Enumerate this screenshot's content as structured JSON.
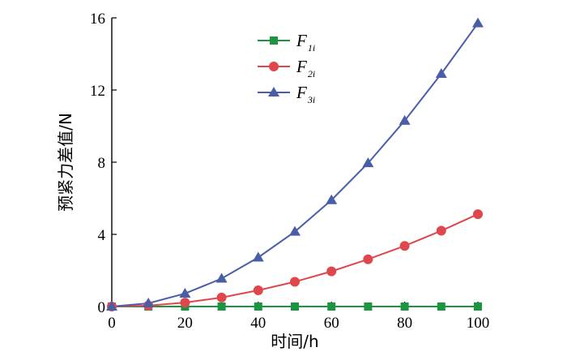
{
  "chart_data": {
    "type": "line",
    "x": [
      0,
      10,
      20,
      30,
      40,
      50,
      60,
      70,
      80,
      90,
      100
    ],
    "series": [
      {
        "name": "F1i",
        "label_main": "F",
        "label_sub": "1i",
        "color": "#1a9641",
        "marker": "square",
        "values": [
          0,
          0,
          0,
          0,
          0,
          0,
          0,
          0,
          0,
          0,
          0
        ]
      },
      {
        "name": "F2i",
        "label_main": "F",
        "label_sub": "2i",
        "color": "#e0474c",
        "marker": "circle",
        "values": [
          0,
          0.05,
          0.22,
          0.5,
          0.9,
          1.37,
          1.95,
          2.62,
          3.36,
          4.2,
          5.12
        ]
      },
      {
        "name": "F3i",
        "label_main": "F",
        "label_sub": "3i",
        "color": "#4a5ea8",
        "marker": "triangle",
        "values": [
          0,
          0.18,
          0.72,
          1.55,
          2.72,
          4.15,
          5.9,
          7.95,
          10.3,
          12.9,
          15.7
        ]
      }
    ],
    "xlabel": "时间/h",
    "ylabel": "预紧力差值/N",
    "xlim": [
      0,
      100
    ],
    "ylim": [
      0,
      16
    ],
    "xticks": [
      0,
      20,
      40,
      60,
      80,
      100
    ],
    "yticks": [
      0,
      4,
      8,
      12,
      16
    ],
    "legend_position": "top-center",
    "grid": false
  }
}
